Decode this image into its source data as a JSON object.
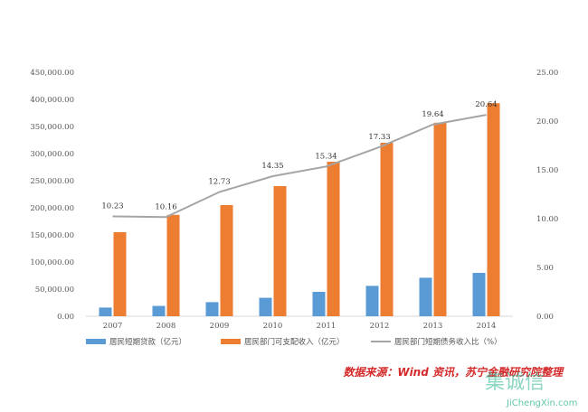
{
  "chart_data": {
    "type": "bar",
    "categories": [
      "2007",
      "2008",
      "2009",
      "2010",
      "2011",
      "2012",
      "2013",
      "2014"
    ],
    "series": [
      {
        "name": "居民短期贷款（亿元）",
        "kind": "bar",
        "axis": "left",
        "color": "#5b9bd5",
        "values": [
          16000,
          19000,
          26000,
          34000,
          45000,
          56000,
          71000,
          80000
        ]
      },
      {
        "name": "居民部门可支配收入（亿元）",
        "kind": "bar",
        "axis": "left",
        "color": "#ed7d31",
        "values": [
          155000,
          187000,
          205000,
          240000,
          285000,
          320000,
          357000,
          393000
        ]
      },
      {
        "name": "居民部门短期债务收入比（%）",
        "kind": "line",
        "axis": "right",
        "color": "#a5a5a5",
        "values": [
          10.23,
          10.16,
          12.73,
          14.35,
          15.34,
          17.33,
          19.64,
          20.64
        ],
        "labels": [
          "10.23",
          "10.16",
          "12.73",
          "14.35",
          "15.34",
          "17.33",
          "19.64",
          "20.64"
        ]
      }
    ],
    "ylim_left": [
      0,
      450000
    ],
    "yticks_left": [
      "0.00",
      "50,000.00",
      "100,000.00",
      "150,000.00",
      "200,000.00",
      "250,000.00",
      "300,000.00",
      "350,000.00",
      "400,000.00",
      "450,000.00"
    ],
    "ylim_right": [
      0,
      25
    ],
    "yticks_right": [
      "0.00",
      "5.00",
      "10.00",
      "15.00",
      "20.00",
      "25.00"
    ],
    "grid": false,
    "legend": "bottom"
  },
  "source_note": "数据来源：Wind 资讯，苏宁金融研究院整理",
  "watermark": {
    "mark": "集诚信",
    "url": "JiChengXin.com",
    "color": "#2db58d"
  }
}
